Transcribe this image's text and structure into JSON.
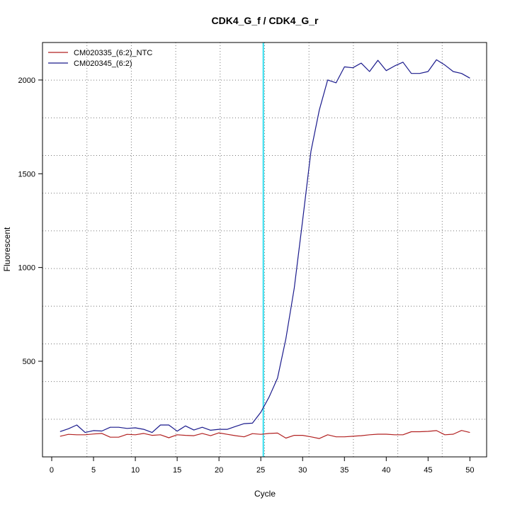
{
  "chart_data": {
    "type": "line",
    "title": "CDK4_G_f / CDK4_G_r",
    "xlabel": "Cycle",
    "ylabel": "Fluorescent",
    "xlim": [
      -1.1,
      52.0
    ],
    "ylim": [
      -10,
      2200
    ],
    "x_ticks": [
      0,
      5,
      10,
      15,
      20,
      25,
      30,
      35,
      40,
      45,
      50
    ],
    "y_ticks": [
      500,
      1000,
      1500,
      2000
    ],
    "grid": true,
    "legend_position": "top-left",
    "threshold_line": {
      "x": 25.3,
      "color": "#33ddee"
    },
    "x": [
      1,
      2,
      3,
      4,
      5,
      6,
      7,
      8,
      9,
      10,
      11,
      12,
      13,
      14,
      15,
      16,
      17,
      18,
      19,
      20,
      21,
      22,
      23,
      24,
      25,
      26,
      27,
      28,
      29,
      30,
      31,
      32,
      33,
      34,
      35,
      36,
      37,
      38,
      39,
      40,
      41,
      42,
      43,
      44,
      45,
      46,
      47,
      48,
      49,
      50
    ],
    "series": [
      {
        "name": "CM020335_(6:2)_NTC",
        "color": "#b22222",
        "values": [
          100,
          110,
          108,
          108,
          112,
          115,
          95,
          95,
          110,
          108,
          115,
          105,
          108,
          92,
          108,
          105,
          103,
          115,
          103,
          118,
          110,
          103,
          97,
          114,
          110,
          115,
          117,
          90,
          105,
          105,
          97,
          88,
          108,
          97,
          97,
          100,
          103,
          108,
          111,
          111,
          108,
          108,
          124,
          124,
          126,
          130,
          108,
          111,
          131,
          120
        ]
      },
      {
        "name": "CM020345_(6:2)",
        "color": "#1a1a8c",
        "values": [
          125,
          140,
          160,
          120,
          130,
          128,
          148,
          148,
          142,
          145,
          137,
          120,
          160,
          160,
          127,
          155,
          133,
          148,
          132,
          137,
          137,
          153,
          167,
          170,
          228,
          310,
          410,
          620,
          890,
          1250,
          1620,
          1840,
          2000,
          1985,
          2070,
          2065,
          2090,
          2045,
          2105,
          2050,
          2075,
          2095,
          2035,
          2035,
          2045,
          2108,
          2080,
          2045,
          2035,
          2010
        ]
      }
    ]
  }
}
